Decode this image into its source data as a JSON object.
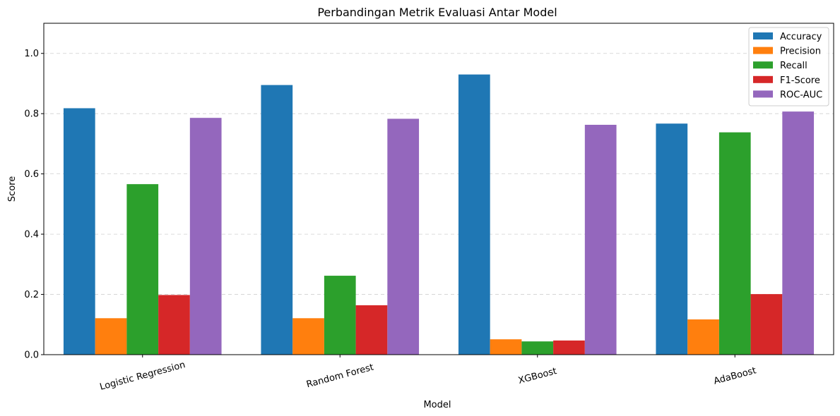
{
  "chart_data": {
    "type": "bar",
    "title": "Perbandingan Metrik Evaluasi Antar Model",
    "xlabel": "Model",
    "ylabel": "Score",
    "ylim": [
      0,
      1.1
    ],
    "yticks": [
      0.0,
      0.2,
      0.4,
      0.6,
      0.8,
      1.0
    ],
    "ytick_labels": [
      "0.0",
      "0.2",
      "0.4",
      "0.6",
      "0.8",
      "1.0"
    ],
    "grid": "y",
    "legend_position": "top-right",
    "categories": [
      "Logistic Regression",
      "Random Forest",
      "XGBoost",
      "AdaBoost"
    ],
    "series": [
      {
        "name": "Accuracy",
        "color": "#1f77b4",
        "values": [
          0.818,
          0.895,
          0.93,
          0.767
        ]
      },
      {
        "name": "Precision",
        "color": "#ff7f0e",
        "values": [
          0.121,
          0.121,
          0.051,
          0.117
        ]
      },
      {
        "name": "Recall",
        "color": "#2ca02c",
        "values": [
          0.566,
          0.262,
          0.044,
          0.738
        ]
      },
      {
        "name": "F1-Score",
        "color": "#d62728",
        "values": [
          0.198,
          0.164,
          0.047,
          0.201
        ]
      },
      {
        "name": "ROC-AUC",
        "color": "#9467bd",
        "values": [
          0.786,
          0.783,
          0.763,
          0.807
        ]
      }
    ]
  }
}
